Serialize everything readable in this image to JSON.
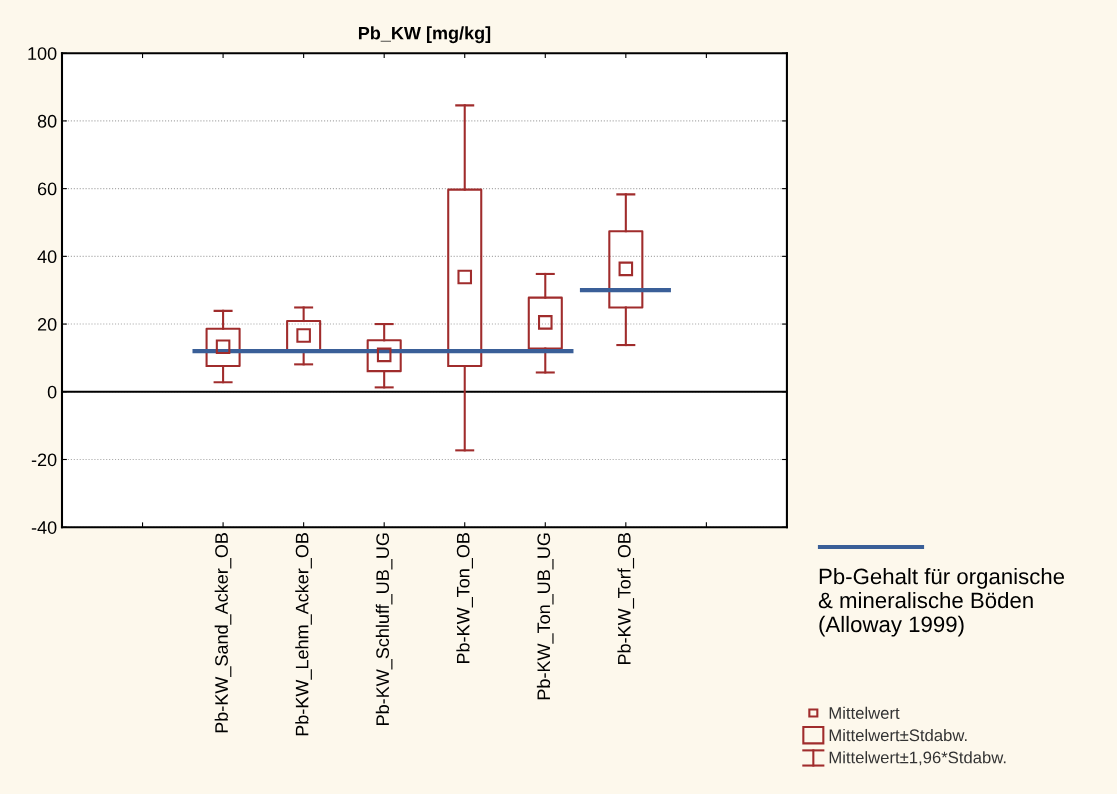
{
  "chart_data": {
    "type": "box",
    "title": "Pb_KW [mg/kg]",
    "categories": [
      "Pb-KW_Sand_Acker_OB",
      "Pb-KW_Lehm_Acker_OB",
      "Pb-KW_Schluff_UB_UG",
      "Pb-KW_Ton_OB",
      "Pb-KW_Ton_UB_UG",
      "Pb-KW_Torf_OB"
    ],
    "series": [
      {
        "color": "#a02c2c",
        "boxes": [
          {
            "low": 2.8,
            "q1": 7.6,
            "q3": 18.6,
            "high": 23.9,
            "mean": 13.3
          },
          {
            "low": 8.1,
            "q1": 12.2,
            "q3": 20.9,
            "high": 24.9,
            "mean": 16.6
          },
          {
            "low": 1.3,
            "q1": 6.1,
            "q3": 15.2,
            "high": 20.0,
            "mean": 10.9
          },
          {
            "low": -17.3,
            "q1": 7.6,
            "q3": 59.7,
            "high": 84.6,
            "mean": 33.9
          },
          {
            "low": 5.7,
            "q1": 12.8,
            "q3": 27.8,
            "high": 34.8,
            "mean": 20.5
          },
          {
            "low": 13.8,
            "q1": 24.9,
            "q3": 47.4,
            "high": 58.3,
            "mean": 36.3
          }
        ]
      }
    ],
    "ylim": [
      -40,
      100
    ],
    "yticks": [
      -40,
      -20,
      0,
      20,
      40,
      60,
      80,
      100
    ],
    "grid": "y",
    "legend": "bottom right",
    "ref_lines": [
      {
        "axis": "y",
        "value": 0,
        "color": "#000000"
      },
      {
        "axis": "y",
        "value": 12,
        "color": "#3a5f98",
        "label": "Pb-Gehalt für organische\n& mineralische Böden\n(Alloway 1999)"
      },
      {
        "axis": "y",
        "value": 30,
        "color": "#3a5f98"
      }
    ],
    "annotations": [
      "Mittelwert",
      "Mittelwert±Stdabw.",
      "Mittelwert±1,96*Stdabw."
    ]
  }
}
